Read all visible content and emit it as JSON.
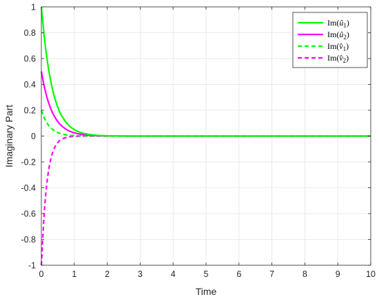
{
  "chart_data": {
    "type": "line",
    "title": "",
    "xlabel": "Time",
    "ylabel": "Imaginary Part",
    "xlim": [
      0,
      10
    ],
    "ylim": [
      -1,
      1
    ],
    "xticks": [
      "0",
      "1",
      "2",
      "3",
      "4",
      "5",
      "6",
      "7",
      "8",
      "9",
      "10"
    ],
    "yticks": [
      "-1",
      "-0.8",
      "-0.6",
      "-0.4",
      "-0.2",
      "0",
      "0.2",
      "0.4",
      "0.6",
      "0.8",
      "1"
    ],
    "grid": true,
    "legend_position": "top-right",
    "x": [
      0,
      0.1,
      0.2,
      0.3,
      0.4,
      0.5,
      0.6,
      0.8,
      1.0,
      1.2,
      1.5,
      2.0,
      3.0,
      4.0,
      5.0,
      6.0,
      7.0,
      8.0,
      9.0,
      10.0
    ],
    "series": [
      {
        "name": "Im(û1)",
        "color": "#00ff00",
        "dash": "solid",
        "values": [
          1.0,
          0.741,
          0.549,
          0.407,
          0.301,
          0.223,
          0.165,
          0.091,
          0.05,
          0.027,
          0.011,
          0.002,
          0,
          0,
          0,
          0,
          0,
          0,
          0,
          0
        ]
      },
      {
        "name": "Im(û2)",
        "color": "#ff00ff",
        "dash": "solid",
        "values": [
          0.5,
          0.37,
          0.274,
          0.203,
          0.151,
          0.112,
          0.083,
          0.045,
          0.025,
          0.014,
          0.006,
          0.001,
          0,
          0,
          0,
          0,
          0,
          0,
          0,
          0
        ]
      },
      {
        "name": "Im(v̂1)",
        "color": "#00ff00",
        "dash": "dashed",
        "values": [
          0.2,
          0.134,
          0.09,
          0.06,
          0.04,
          0.027,
          0.018,
          0.008,
          0.004,
          0.002,
          0.001,
          0,
          0,
          0,
          0,
          0,
          0,
          0,
          0,
          0
        ]
      },
      {
        "name": "Im(v̂2)",
        "color": "#ff00ff",
        "dash": "dashed",
        "values": [
          -1.0,
          -0.549,
          -0.301,
          -0.165,
          -0.091,
          -0.05,
          -0.027,
          -0.008,
          -0.002,
          -0.001,
          0,
          0,
          0,
          0,
          0,
          0,
          0,
          0,
          0,
          0
        ]
      }
    ],
    "legend": [
      {
        "prefix": "Im(",
        "letter": "û",
        "sub": "1",
        "suffix": ")"
      },
      {
        "prefix": "Im(",
        "letter": "û",
        "sub": "2",
        "suffix": ")"
      },
      {
        "prefix": "Im(",
        "letter": "v̂",
        "sub": "1",
        "suffix": ")"
      },
      {
        "prefix": "Im(",
        "letter": "v̂",
        "sub": "2",
        "suffix": ")"
      }
    ]
  }
}
